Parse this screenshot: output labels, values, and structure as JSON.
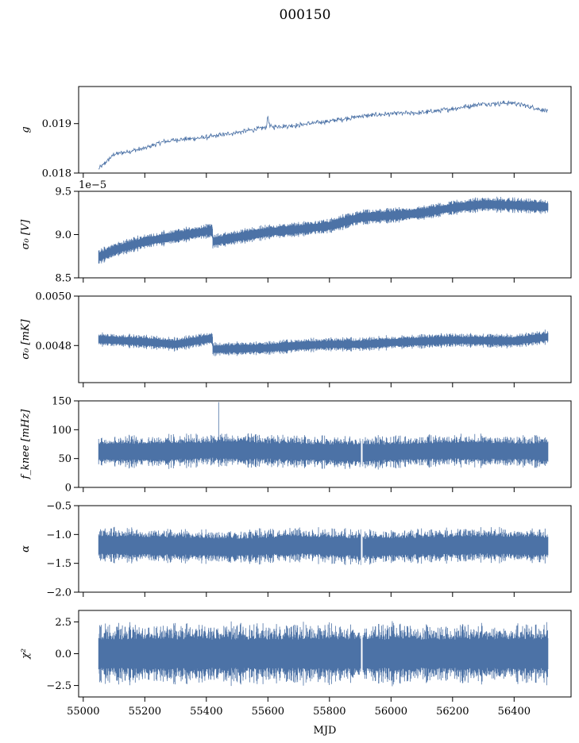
{
  "figure": {
    "title": "000150",
    "xlabel": "MJD"
  },
  "chart_data": {
    "type": "line",
    "x_range": [
      55050,
      56510
    ],
    "xlim": [
      54985,
      56585
    ],
    "xticks": [
      55000,
      55200,
      55400,
      55600,
      55800,
      56000,
      56200,
      56400
    ],
    "xtick_labels": [
      "55000",
      "55200",
      "55400",
      "55600",
      "55800",
      "56000",
      "56200",
      "56400"
    ],
    "panels": [
      {
        "id": "g",
        "ylabel": "g",
        "ylim": [
          0.018,
          0.01975
        ],
        "yticks": [
          0.018,
          0.019
        ],
        "ytick_labels": [
          "0.018",
          "0.019"
        ],
        "render": "line",
        "trend": [
          [
            55050,
            0.01808
          ],
          [
            55100,
            0.01838
          ],
          [
            55200,
            0.0185
          ],
          [
            55250,
            0.01862
          ],
          [
            55300,
            0.01867
          ],
          [
            55400,
            0.01872
          ],
          [
            55500,
            0.01882
          ],
          [
            55600,
            0.01893
          ],
          [
            55700,
            0.01897
          ],
          [
            55800,
            0.01905
          ],
          [
            55900,
            0.01915
          ],
          [
            56000,
            0.0192
          ],
          [
            56100,
            0.01922
          ],
          [
            56200,
            0.0193
          ],
          [
            56300,
            0.0194
          ],
          [
            56400,
            0.01942
          ],
          [
            56510,
            0.01925
          ]
        ],
        "features": [
          {
            "x": 55600,
            "value": 0.01915
          }
        ],
        "spread": 2e-05
      },
      {
        "id": "sigma0_V",
        "ylabel": "σ₀ [V]",
        "offset_text": "1e−5",
        "ylim": [
          8.5,
          9.5
        ],
        "yticks": [
          8.5,
          9.0,
          9.5
        ],
        "ytick_labels": [
          "8.5",
          "9.0",
          "9.5"
        ],
        "render": "band",
        "trend": [
          [
            55050,
            8.74
          ],
          [
            55100,
            8.82
          ],
          [
            55200,
            8.92
          ],
          [
            55300,
            8.98
          ],
          [
            55420,
            9.05
          ],
          [
            55421,
            8.92
          ],
          [
            55500,
            8.97
          ],
          [
            55600,
            9.03
          ],
          [
            55700,
            9.06
          ],
          [
            55800,
            9.1
          ],
          [
            55900,
            9.2
          ],
          [
            56000,
            9.22
          ],
          [
            56100,
            9.25
          ],
          [
            56200,
            9.31
          ],
          [
            56300,
            9.35
          ],
          [
            56400,
            9.34
          ],
          [
            56510,
            9.32
          ]
        ],
        "spread": 0.04
      },
      {
        "id": "sigma0_mK",
        "ylabel": "σ₀ [mK]",
        "ylim": [
          0.00465,
          0.005
        ],
        "yticks": [
          0.0048,
          0.005
        ],
        "ytick_labels": [
          "0.0048",
          "0.0050"
        ],
        "render": "band",
        "trend": [
          [
            55050,
            0.004825
          ],
          [
            55200,
            0.004815
          ],
          [
            55300,
            0.004805
          ],
          [
            55420,
            0.00483
          ],
          [
            55421,
            0.004785
          ],
          [
            55600,
            0.00479
          ],
          [
            55700,
            0.0048
          ],
          [
            55800,
            0.004805
          ],
          [
            55900,
            0.004805
          ],
          [
            56000,
            0.004812
          ],
          [
            56200,
            0.004822
          ],
          [
            56400,
            0.004818
          ],
          [
            56510,
            0.004835
          ]
        ],
        "spread": 1.3e-05
      },
      {
        "id": "fknee",
        "ylabel": "f_knee [mHz]",
        "ylim": [
          0,
          150
        ],
        "yticks": [
          0,
          50,
          100,
          150
        ],
        "ytick_labels": [
          "0",
          "50",
          "100",
          "150"
        ],
        "render": "band",
        "trend": [
          [
            55050,
            62
          ],
          [
            55250,
            62
          ],
          [
            55450,
            65
          ],
          [
            55700,
            62
          ],
          [
            55900,
            60
          ],
          [
            56200,
            64
          ],
          [
            56510,
            62
          ]
        ],
        "features": [
          {
            "x": 55440,
            "value": 148
          }
        ],
        "gaps": [
          55905
        ],
        "spread": 13
      },
      {
        "id": "alpha",
        "ylabel": "α",
        "ylim": [
          -2.0,
          -0.5
        ],
        "yticks": [
          -2.0,
          -1.5,
          -1.0,
          -0.5
        ],
        "ytick_labels": [
          "−2.0",
          "−1.5",
          "−1.0",
          "−0.5"
        ],
        "render": "band",
        "trend": [
          [
            55050,
            -1.18
          ],
          [
            55300,
            -1.2
          ],
          [
            55500,
            -1.22
          ],
          [
            55700,
            -1.18
          ],
          [
            55900,
            -1.22
          ],
          [
            56100,
            -1.2
          ],
          [
            56300,
            -1.18
          ],
          [
            56510,
            -1.2
          ]
        ],
        "gaps": [
          55905
        ],
        "spread": 0.14
      },
      {
        "id": "chi2",
        "ylabel": "χ²",
        "ylim": [
          -3.4,
          3.4
        ],
        "yticks": [
          -2.5,
          0.0,
          2.5
        ],
        "ytick_labels": [
          "−2.5",
          "0.0",
          "2.5"
        ],
        "render": "band",
        "trend": [
          [
            55050,
            0.0
          ],
          [
            56510,
            0.0
          ]
        ],
        "gaps": [
          55905
        ],
        "spread": 1.1
      }
    ]
  }
}
